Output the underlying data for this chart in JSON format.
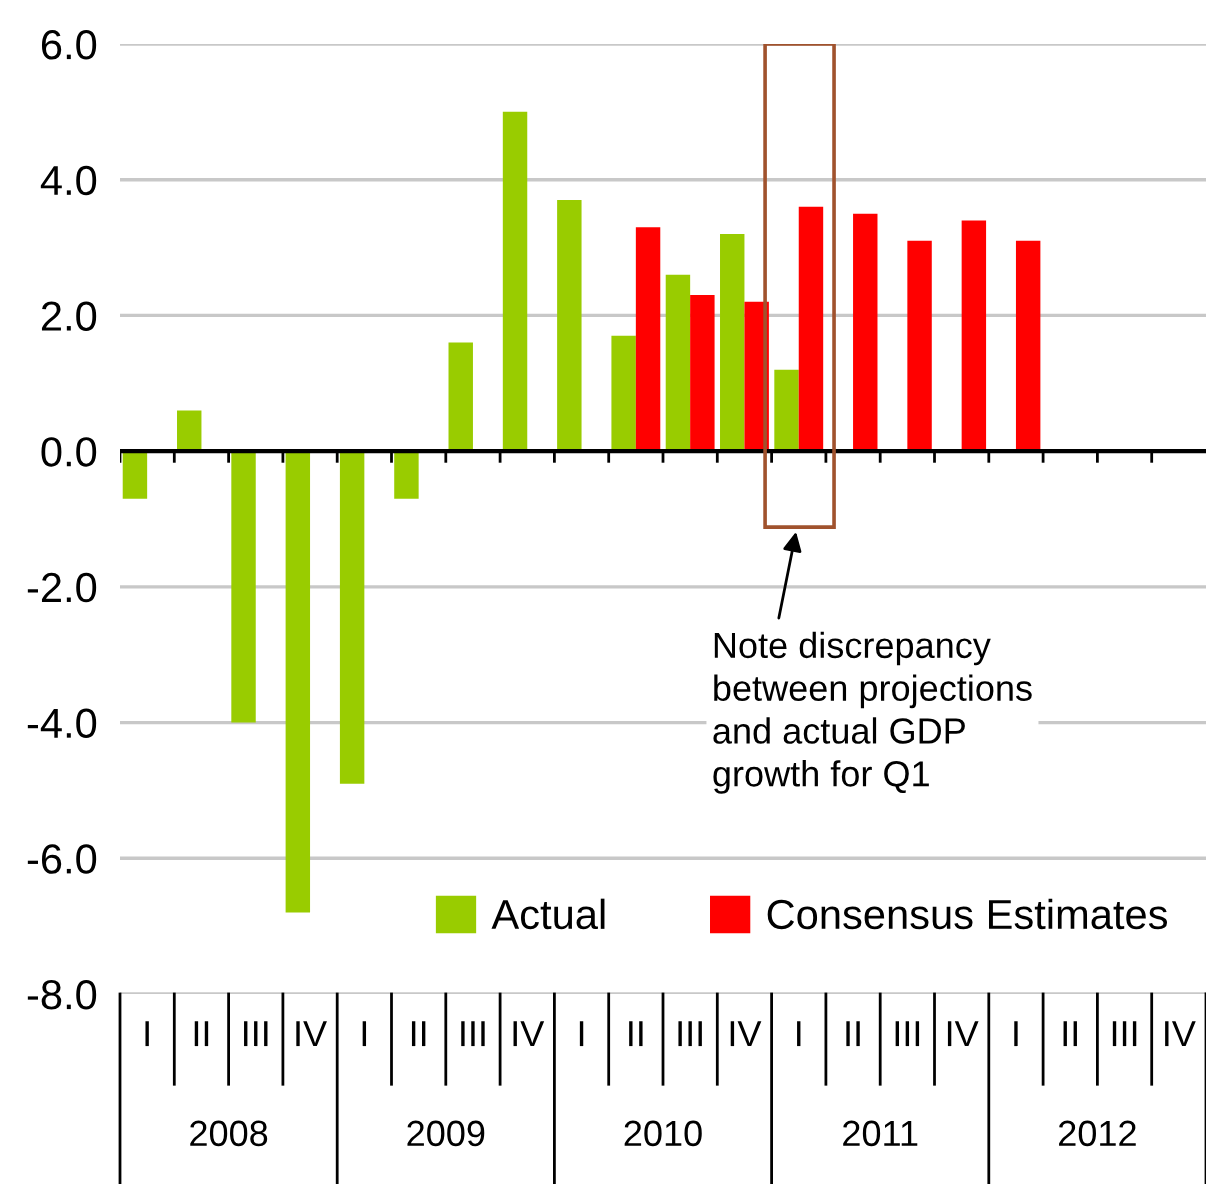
{
  "chart_data": {
    "type": "bar",
    "categories": [
      "I",
      "II",
      "III",
      "IV",
      "I",
      "II",
      "III",
      "IV",
      "I",
      "II",
      "III",
      "IV",
      "I",
      "II",
      "III",
      "IV",
      "I",
      "II",
      "III",
      "IV"
    ],
    "series": [
      {
        "name": "Actual",
        "color": "#99cc00",
        "values": [
          -0.7,
          0.6,
          -4.0,
          -6.8,
          -4.9,
          -0.7,
          1.6,
          5.0,
          3.7,
          1.7,
          2.6,
          3.2,
          1.2,
          null,
          null,
          null,
          null,
          null,
          null,
          null
        ]
      },
      {
        "name": "Consensus Estimates",
        "color": "#ff0000",
        "values": [
          null,
          null,
          null,
          null,
          null,
          null,
          null,
          null,
          null,
          3.3,
          2.3,
          2.2,
          3.6,
          3.5,
          3.1,
          3.4,
          3.1,
          null,
          null,
          null
        ]
      }
    ],
    "ylim": [
      -8,
      6
    ],
    "yticks": [
      {
        "value": -8,
        "label": "-8.0"
      },
      {
        "value": -6,
        "label": "-6.0"
      },
      {
        "value": -4,
        "label": "-4.0"
      },
      {
        "value": -2,
        "label": "-2.0"
      },
      {
        "value": 0,
        "label": "0.0"
      },
      {
        "value": 2,
        "label": "2.0"
      },
      {
        "value": 4,
        "label": "4.0"
      },
      {
        "value": 6,
        "label": "6.0"
      }
    ],
    "grid": "y",
    "legend": "bottom right",
    "annotations": [
      "2008",
      "2009",
      "2010",
      "2011",
      "2012",
      "Note discrepancy\nbetween projections\nand actual GDP\ngrowth for Q1"
    ]
  }
}
